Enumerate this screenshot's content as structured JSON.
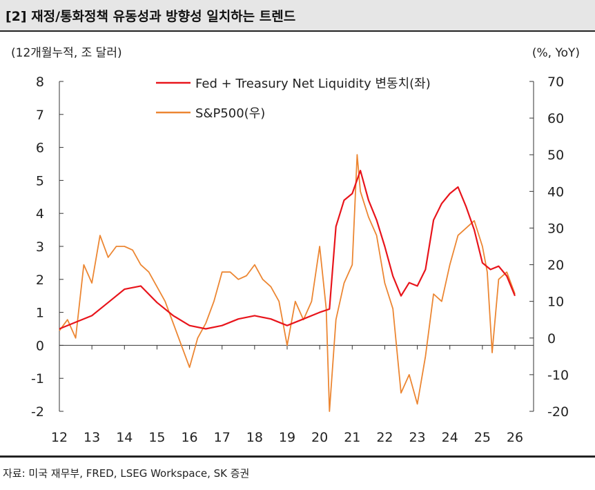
{
  "header": {
    "title": "[2] 재정/통화정책 유동성과 방향성 일치하는 트렌드"
  },
  "footer": {
    "source": "자료: 미국 재무부, FRED, LSEG Workspace, SK 증권"
  },
  "chart_data": {
    "type": "line",
    "title": "[2] 재정/통화정책 유동성과 방향성 일치하는 트렌드",
    "ylabel_left": "(12개월누적, 조 달러)",
    "ylabel_right": "(%, YoY)",
    "ylim_left": [
      -2,
      8
    ],
    "yticks_left": [
      -2,
      -1,
      0,
      1,
      2,
      3,
      4,
      5,
      6,
      7,
      8
    ],
    "ylim_right": [
      -20,
      70
    ],
    "yticks_right": [
      -20,
      -10,
      0,
      10,
      20,
      30,
      40,
      50,
      60,
      70
    ],
    "xlim": [
      2012,
      2026
    ],
    "xticks": [
      "12",
      "13",
      "14",
      "15",
      "16",
      "17",
      "18",
      "19",
      "20",
      "21",
      "22",
      "23",
      "24",
      "25",
      "26"
    ],
    "legend_position": "top-center",
    "series": [
      {
        "name": "Fed + Treasury Net Liquidity 변동치(좌)",
        "axis": "left",
        "color": "#e8141b",
        "x": [
          2012.0,
          2012.5,
          2013.0,
          2013.5,
          2014.0,
          2014.5,
          2015.0,
          2015.5,
          2016.0,
          2016.5,
          2017.0,
          2017.5,
          2018.0,
          2018.5,
          2019.0,
          2019.5,
          2020.0,
          2020.3,
          2020.5,
          2020.75,
          2021.0,
          2021.25,
          2021.5,
          2021.75,
          2022.0,
          2022.25,
          2022.5,
          2022.75,
          2023.0,
          2023.25,
          2023.5,
          2023.75,
          2024.0,
          2024.25,
          2024.5,
          2024.75,
          2025.0,
          2025.25,
          2025.5,
          2025.75,
          2026.0
        ],
        "values": [
          0.5,
          0.7,
          0.9,
          1.3,
          1.7,
          1.8,
          1.3,
          0.9,
          0.6,
          0.5,
          0.6,
          0.8,
          0.9,
          0.8,
          0.6,
          0.8,
          1.0,
          1.1,
          3.6,
          4.4,
          4.6,
          5.3,
          4.4,
          3.8,
          3.0,
          2.1,
          1.5,
          1.9,
          1.8,
          2.3,
          3.8,
          4.3,
          4.6,
          4.8,
          4.2,
          3.5,
          2.5,
          2.3,
          2.4,
          2.1,
          1.5
        ]
      },
      {
        "name": "S&P500(우)",
        "axis": "right",
        "color": "#ec8632",
        "x": [
          2012.0,
          2012.25,
          2012.5,
          2012.75,
          2013.0,
          2013.25,
          2013.5,
          2013.75,
          2014.0,
          2014.25,
          2014.5,
          2014.75,
          2015.0,
          2015.25,
          2015.5,
          2015.75,
          2016.0,
          2016.25,
          2016.5,
          2016.75,
          2017.0,
          2017.25,
          2017.5,
          2017.75,
          2018.0,
          2018.25,
          2018.5,
          2018.75,
          2019.0,
          2019.25,
          2019.5,
          2019.75,
          2020.0,
          2020.2,
          2020.3,
          2020.5,
          2020.75,
          2021.0,
          2021.15,
          2021.25,
          2021.5,
          2021.75,
          2022.0,
          2022.25,
          2022.5,
          2022.75,
          2023.0,
          2023.25,
          2023.5,
          2023.75,
          2024.0,
          2024.25,
          2024.5,
          2024.75,
          2025.0,
          2025.15,
          2025.3,
          2025.5,
          2025.75,
          2026.0
        ],
        "values": [
          2,
          5,
          0,
          20,
          15,
          28,
          22,
          25,
          25,
          24,
          20,
          18,
          14,
          10,
          4,
          -2,
          -8,
          0,
          4,
          10,
          18,
          18,
          16,
          17,
          20,
          16,
          14,
          10,
          -2,
          10,
          5,
          10,
          25,
          8,
          -20,
          5,
          15,
          20,
          50,
          40,
          33,
          28,
          15,
          8,
          -15,
          -10,
          -18,
          -5,
          12,
          10,
          20,
          28,
          30,
          32,
          25,
          18,
          -4,
          16,
          18,
          12
        ]
      }
    ]
  }
}
